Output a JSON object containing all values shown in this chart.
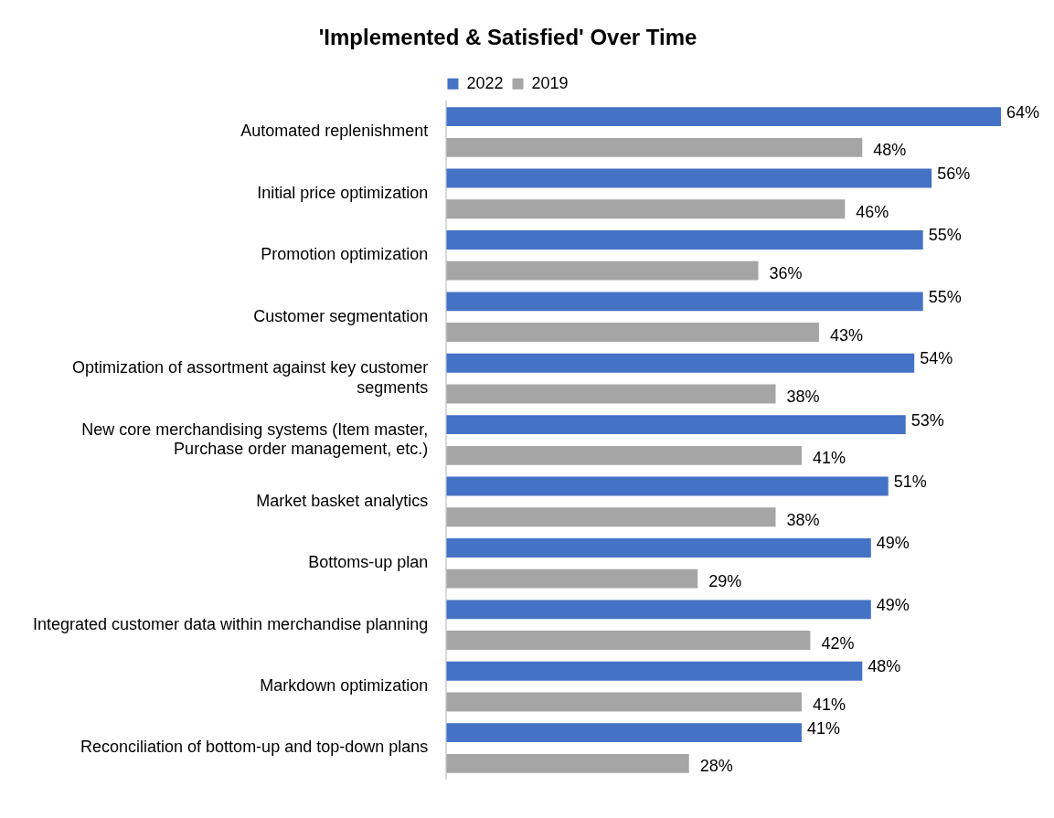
{
  "chart_data": {
    "type": "bar",
    "orientation": "horizontal",
    "title": "'Implemented & Satisfied' Over Time",
    "categories": [
      "Automated replenishment",
      "Initial price optimization",
      "Promotion optimization",
      "Customer segmentation",
      "Optimization of assortment against key customer segments",
      "New core merchandising systems (Item master, Purchase order management, etc.)",
      "Market basket analytics",
      "Bottoms-up plan",
      "Integrated customer data within merchandise planning",
      "Markdown optimization",
      "Reconciliation of bottom-up and top-down plans"
    ],
    "series": [
      {
        "name": "2022",
        "color": "#4472c4",
        "values": [
          64,
          56,
          55,
          55,
          54,
          53,
          51,
          49,
          49,
          48,
          41
        ],
        "value_labels": [
          "64%",
          "56%",
          "55%",
          "55%",
          "54%",
          "53%",
          "51%",
          "49%",
          "49%",
          "48%",
          "41%"
        ]
      },
      {
        "name": "2019",
        "color": "#a5a5a5",
        "values": [
          48,
          46,
          36,
          43,
          38,
          41,
          38,
          29,
          42,
          41,
          28
        ],
        "value_labels": [
          "48%",
          "46%",
          "36%",
          "43%",
          "38%",
          "41%",
          "38%",
          "29%",
          "42%",
          "41%",
          "28%"
        ]
      }
    ],
    "legend": "top"
  }
}
